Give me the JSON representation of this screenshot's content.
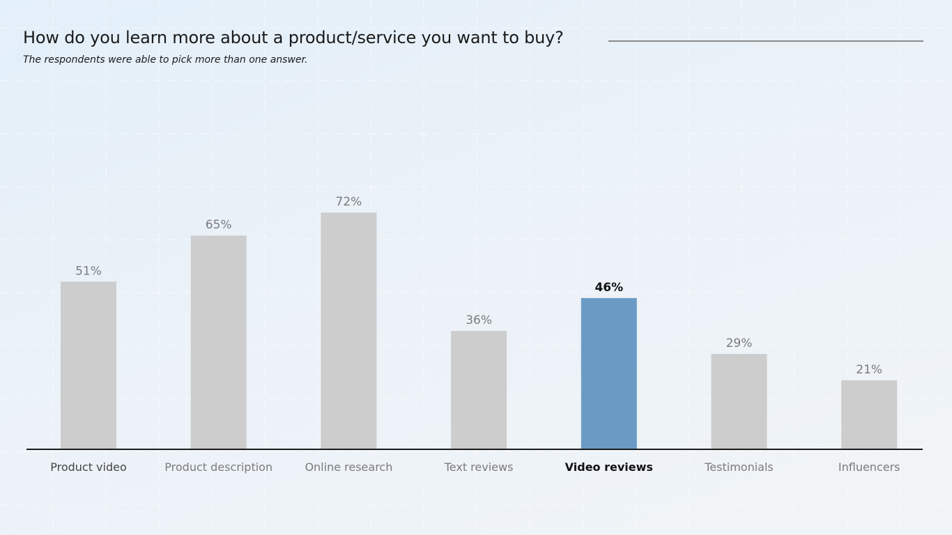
{
  "title": "How do you learn more about a product/service you want to buy?",
  "subtitle": "The respondents were able to pick more than one answer.",
  "colors": {
    "bar": "#cdcdcd",
    "highlight": "#6b9bc4",
    "label": "#7a7a7a",
    "highlight_label": "#111111",
    "axis": "#1a1a1a"
  },
  "chart_data": {
    "type": "bar",
    "categories": [
      "Product video",
      "Product description",
      "Online research",
      "Text reviews",
      "Video reviews",
      "Testimonials",
      "Influencers"
    ],
    "values": [
      51,
      65,
      72,
      36,
      46,
      29,
      21
    ],
    "value_labels": [
      "51%",
      "65%",
      "72%",
      "36%",
      "46%",
      "29%",
      "21%"
    ],
    "highlight": "Video reviews",
    "unit": "%",
    "ylim": [
      0,
      100
    ],
    "grid": true
  }
}
